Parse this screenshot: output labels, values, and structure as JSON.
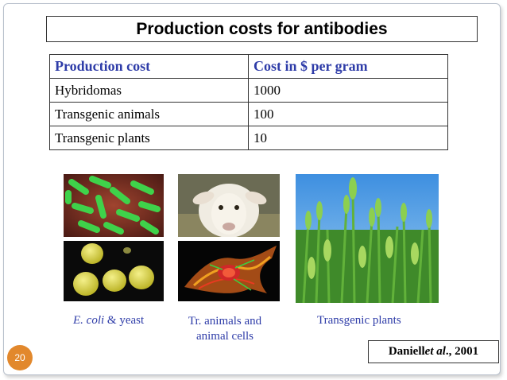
{
  "slide": {
    "title": "Production costs for antibodies",
    "table": {
      "headers": [
        "Production cost",
        "Cost in $ per gram"
      ],
      "rows": [
        [
          "Hybridomas",
          "1000"
        ],
        [
          "Transgenic animals",
          "100"
        ],
        [
          "Transgenic plants",
          "10"
        ]
      ]
    },
    "captions": {
      "ecoli_italic": "E. coli",
      "ecoli_rest": " & yeast",
      "animals_line1": "Tr. animals and",
      "animals_line2": "animal cells",
      "plants": "Transgenic plants"
    },
    "reference": {
      "author": "Daniell ",
      "etal": "et al",
      "year": "., 2001"
    },
    "page_number": "20",
    "images": [
      "ecoli-bacteria-photo",
      "yeast-cells-photo",
      "sheep-photo",
      "animal-cell-photo",
      "wheat-field-photo"
    ],
    "colors": {
      "accent": "#2e3ca8",
      "page_badge": "#e2882c"
    }
  }
}
